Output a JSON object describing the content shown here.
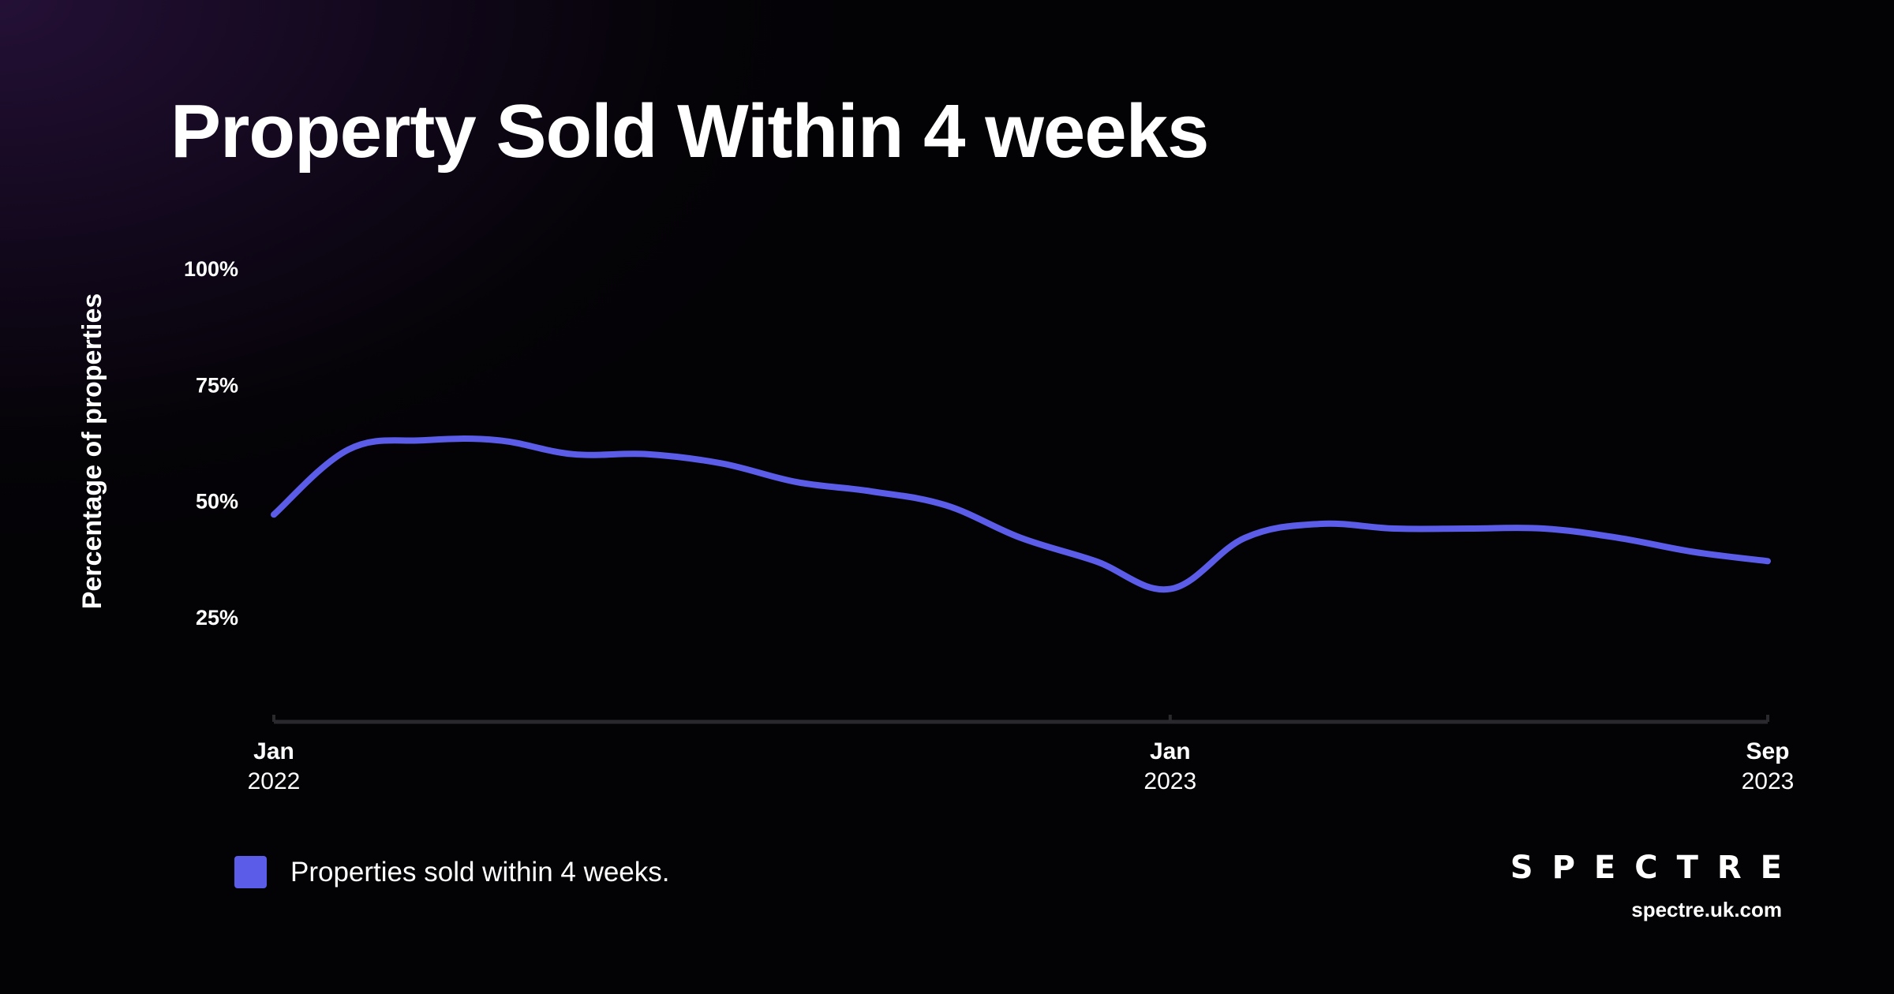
{
  "title": "Property Sold Within 4 weeks",
  "brand": {
    "logo": "SPECTRE",
    "url": "spectre.uk.com"
  },
  "colors": {
    "line": "#5b5ce8",
    "axis": "#2a2a2e",
    "background": "#050307"
  },
  "chart_data": {
    "type": "line",
    "title": "Property Sold Within 4 weeks",
    "ylabel": "Percentage of properties",
    "xlabel": "",
    "ylim": [
      0,
      100
    ],
    "yticks": [
      {
        "value": 25,
        "label": "25%"
      },
      {
        "value": 50,
        "label": "50%"
      },
      {
        "value": 75,
        "label": "75%"
      },
      {
        "value": 100,
        "label": "100%"
      }
    ],
    "xlim": [
      "2022-01",
      "2023-09"
    ],
    "xticks": [
      {
        "date": "2022-01",
        "month": "Jan",
        "year": "2022"
      },
      {
        "date": "2023-01",
        "month": "Jan",
        "year": "2023"
      },
      {
        "date": "2023-09",
        "month": "Sep",
        "year": "2023"
      }
    ],
    "grid": false,
    "legend_position": "bottom-left",
    "series": [
      {
        "name": "Properties sold within 4 weeks.",
        "color": "#5b5ce8",
        "x": [
          "2022-01",
          "2022-02",
          "2022-03",
          "2022-04",
          "2022-05",
          "2022-06",
          "2022-07",
          "2022-08",
          "2022-09",
          "2022-10",
          "2022-11",
          "2022-12",
          "2023-01",
          "2023-02",
          "2023-03",
          "2023-04",
          "2023-05",
          "2023-06",
          "2023-07",
          "2023-08",
          "2023-09"
        ],
        "values": [
          47,
          61,
          63,
          63,
          60,
          60,
          58,
          54,
          52,
          49,
          42,
          37,
          31,
          42,
          45,
          44,
          44,
          44,
          42,
          39,
          37
        ]
      }
    ]
  }
}
